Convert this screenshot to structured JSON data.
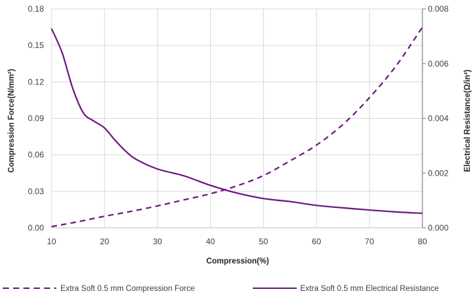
{
  "chart_data": {
    "type": "line",
    "xlabel": "Compression(%)",
    "ylabel_left": "Compression Force(N/mm²)",
    "ylabel_right": "Electrical Resistance(Ω/in²)",
    "xlim": [
      10,
      80
    ],
    "ylim_left": [
      0,
      0.18
    ],
    "ylim_right": [
      0,
      0.008
    ],
    "x_ticks": [
      "10",
      "20",
      "30",
      "40",
      "50",
      "60",
      "70",
      "80"
    ],
    "y_left_ticks": [
      "0.00",
      "0.03",
      "0.06",
      "0.09",
      "0.12",
      "0.15",
      "0.18"
    ],
    "y_right_ticks": [
      "0.000",
      "0.002",
      "0.004",
      "0.006",
      "0.008"
    ],
    "grid": true,
    "legend_position": "bottom",
    "series": [
      {
        "name": "Extra Soft 0.5 mm Compression Force",
        "axis": "left",
        "style": "dashed",
        "color": "#6b1a7e",
        "x": [
          10,
          15,
          20,
          25,
          30,
          35,
          40,
          45,
          50,
          55,
          60,
          65,
          70,
          75,
          80
        ],
        "y": [
          0.001,
          0.005,
          0.0095,
          0.0135,
          0.018,
          0.023,
          0.028,
          0.0345,
          0.043,
          0.055,
          0.068,
          0.085,
          0.107,
          0.133,
          0.165
        ]
      },
      {
        "name": "Extra Soft 0.5 mm Electrical Resistance",
        "axis": "right",
        "style": "solid",
        "color": "#6b1a7e",
        "x": [
          10,
          12,
          14,
          16,
          18,
          20,
          22,
          24,
          26,
          30,
          35,
          40,
          45,
          50,
          55,
          60,
          65,
          70,
          75,
          80
        ],
        "y": [
          0.00728,
          0.0064,
          0.0051,
          0.0042,
          0.0039,
          0.00365,
          0.0032,
          0.0028,
          0.0025,
          0.00215,
          0.0019,
          0.00155,
          0.00127,
          0.00107,
          0.00096,
          0.00082,
          0.00073,
          0.00065,
          0.00058,
          0.00053
        ]
      }
    ]
  }
}
